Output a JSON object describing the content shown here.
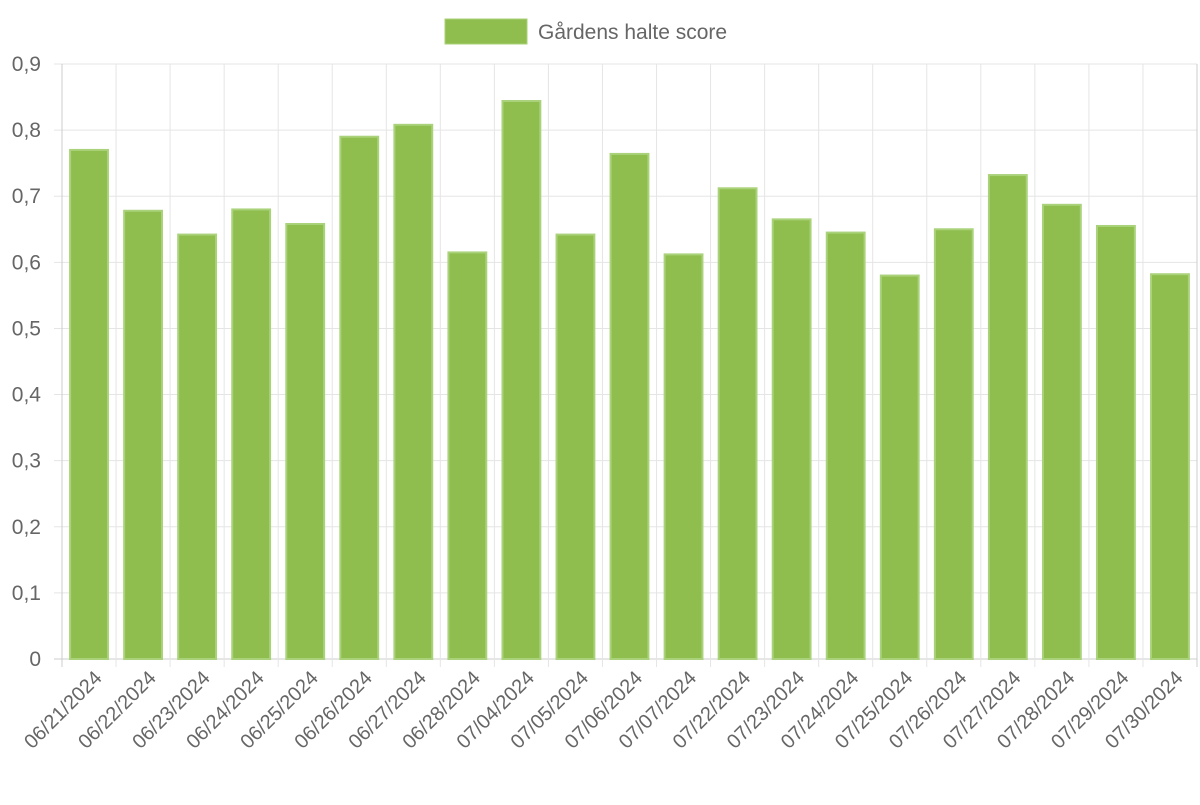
{
  "chart_data": {
    "type": "bar",
    "legend": {
      "position": "top",
      "label": "Gårdens halte score"
    },
    "series": [
      {
        "name": "Gårdens halte score",
        "color": "#8fbe4e",
        "border_color": "#a9d27a",
        "values": [
          0.77,
          0.678,
          0.642,
          0.68,
          0.658,
          0.79,
          0.808,
          0.615,
          0.844,
          0.642,
          0.764,
          0.612,
          0.712,
          0.665,
          0.645,
          0.58,
          0.65,
          0.732,
          0.687,
          0.655,
          0.582
        ]
      }
    ],
    "categories": [
      "06/21/2024",
      "06/22/2024",
      "06/23/2024",
      "06/24/2024",
      "06/25/2024",
      "06/26/2024",
      "06/27/2024",
      "06/28/2024",
      "07/04/2024",
      "07/05/2024",
      "07/06/2024",
      "07/07/2024",
      "07/22/2024",
      "07/23/2024",
      "07/24/2024",
      "07/25/2024",
      "07/26/2024",
      "07/27/2024",
      "07/28/2024",
      "07/29/2024",
      "07/30/2024"
    ],
    "y_ticks": [
      {
        "value": 0,
        "label": "0"
      },
      {
        "value": 0.1,
        "label": "0,1"
      },
      {
        "value": 0.2,
        "label": "0,2"
      },
      {
        "value": 0.3,
        "label": "0,3"
      },
      {
        "value": 0.4,
        "label": "0,4"
      },
      {
        "value": 0.5,
        "label": "0,5"
      },
      {
        "value": 0.6,
        "label": "0,6"
      },
      {
        "value": 0.7,
        "label": "0,7"
      },
      {
        "value": 0.8,
        "label": "0,8"
      },
      {
        "value": 0.9,
        "label": "0,9"
      }
    ],
    "ylim": [
      0,
      0.9
    ],
    "grid": true,
    "grid_color": "#e5e5e5",
    "axis_color": "#cccccc"
  }
}
